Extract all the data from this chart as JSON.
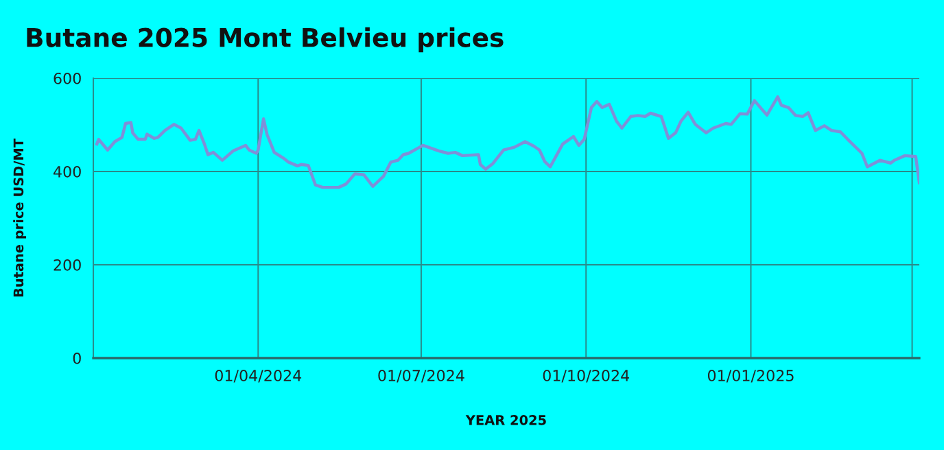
{
  "chart_data": {
    "type": "line",
    "title": "Butane 2025 Mont Belvieu prices",
    "xlabel": "YEAR 2025",
    "ylabel": "Butane price USD/MT",
    "x": [
      "2024-01-02",
      "2024-01-03",
      "2024-01-08",
      "2024-01-12",
      "2024-01-16",
      "2024-01-18",
      "2024-01-21",
      "2024-01-22",
      "2024-01-25",
      "2024-01-29",
      "2024-01-30",
      "2024-02-03",
      "2024-02-05",
      "2024-02-09",
      "2024-02-14",
      "2024-02-18",
      "2024-02-23",
      "2024-02-26",
      "2024-02-28",
      "2024-03-02",
      "2024-03-04",
      "2024-03-07",
      "2024-03-12",
      "2024-03-18",
      "2024-03-25",
      "2024-03-27",
      "2024-03-31",
      "2024-04-01",
      "2024-04-04",
      "2024-04-06",
      "2024-04-10",
      "2024-04-15",
      "2024-04-18",
      "2024-04-23",
      "2024-04-25",
      "2024-04-29",
      "2024-05-03",
      "2024-05-07",
      "2024-05-16",
      "2024-05-20",
      "2024-05-25",
      "2024-05-30",
      "2024-06-04",
      "2024-06-10",
      "2024-06-14",
      "2024-06-18",
      "2024-06-21",
      "2024-06-24",
      "2024-07-02",
      "2024-07-11",
      "2024-07-16",
      "2024-07-20",
      "2024-07-24",
      "2024-08-02",
      "2024-08-03",
      "2024-08-06",
      "2024-08-10",
      "2024-08-16",
      "2024-08-22",
      "2024-08-28",
      "2024-09-02",
      "2024-09-05",
      "2024-09-08",
      "2024-09-11",
      "2024-09-18",
      "2024-09-24",
      "2024-09-27",
      "2024-09-30",
      "2024-10-04",
      "2024-10-07",
      "2024-10-10",
      "2024-10-14",
      "2024-10-18",
      "2024-10-21",
      "2024-10-26",
      "2024-10-30",
      "2024-11-03",
      "2024-11-06",
      "2024-11-12",
      "2024-11-16",
      "2024-11-20",
      "2024-11-23",
      "2024-11-27",
      "2024-12-01",
      "2024-12-07",
      "2024-12-11",
      "2024-12-18",
      "2024-12-21",
      "2024-12-26",
      "2024-12-30",
      "2025-01-03",
      "2025-01-07",
      "2025-01-10",
      "2025-01-16",
      "2025-01-18",
      "2025-01-22",
      "2025-01-26",
      "2025-01-30",
      "2025-02-02",
      "2025-02-06",
      "2025-02-11",
      "2025-02-15",
      "2025-02-20",
      "2025-02-24",
      "2025-03-04",
      "2025-03-07",
      "2025-03-14",
      "2025-03-20",
      "2025-03-22",
      "2025-03-28",
      "2025-04-03",
      "2025-04-05"
    ],
    "series": [
      {
        "color": "#7f8fd8",
        "values": [
          459,
          469,
          446,
          464,
          473,
          503,
          505,
          483,
          469,
          469,
          480,
          471,
          473,
          488,
          501,
          493,
          467,
          469,
          488,
          459,
          436,
          441,
          424,
          444,
          456,
          446,
          439,
          446,
          513,
          479,
          441,
          429,
          420,
          412,
          415,
          413,
          371,
          366,
          366,
          373,
          395,
          393,
          368,
          390,
          420,
          424,
          436,
          439,
          456,
          444,
          439,
          441,
          434,
          436,
          415,
          405,
          417,
          446,
          452,
          464,
          454,
          446,
          421,
          410,
          459,
          475,
          456,
          469,
          537,
          550,
          537,
          544,
          508,
          493,
          518,
          520,
          518,
          525,
          518,
          471,
          483,
          508,
          527,
          501,
          483,
          493,
          503,
          501,
          524,
          523,
          552,
          534,
          521,
          560,
          542,
          537,
          520,
          518,
          526,
          488,
          498,
          488,
          485,
          469,
          439,
          410,
          424,
          418,
          424,
          434,
          432,
          376
        ]
      }
    ],
    "xlim": [
      "2023-12-31",
      "2025-04-05"
    ],
    "xticks": [
      {
        "value": "2024-04-01",
        "label": "01/04/2024"
      },
      {
        "value": "2024-07-01",
        "label": "01/07/2024"
      },
      {
        "value": "2024-10-01",
        "label": "01/10/2024"
      },
      {
        "value": "2025-01-01",
        "label": "01/01/2025"
      },
      {
        "value": "2025-04-01",
        "label": null
      }
    ],
    "ylim": [
      0,
      600
    ],
    "yticks": [
      0,
      200,
      400,
      600
    ],
    "grid": true,
    "marker": "none",
    "line_style": "solid"
  }
}
